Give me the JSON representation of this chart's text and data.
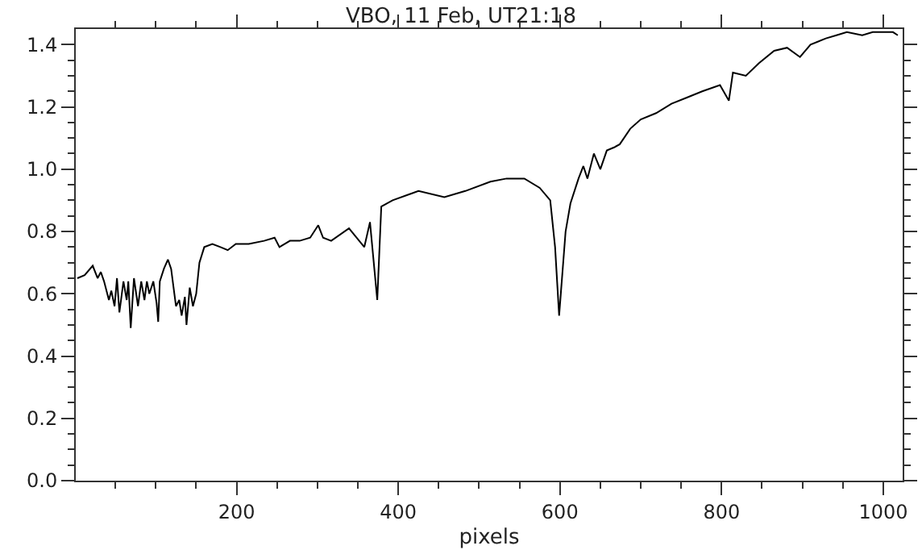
{
  "chart_data": {
    "type": "line",
    "title": "VBO, 11 Feb, UT21:18",
    "xlabel": "pixels",
    "xlim": [
      1,
      1024
    ],
    "ylim": [
      0,
      1.45
    ],
    "xticks": [
      {
        "value": 50,
        "label": null
      },
      {
        "value": 100,
        "label": null
      },
      {
        "value": 150,
        "label": null
      },
      200,
      {
        "value": 250,
        "label": null
      },
      {
        "value": 300,
        "label": null
      },
      {
        "value": 350,
        "label": null
      },
      400,
      {
        "value": 450,
        "label": null
      },
      {
        "value": 500,
        "label": null
      },
      {
        "value": 550,
        "label": null
      },
      600,
      {
        "value": 650,
        "label": null
      },
      {
        "value": 700,
        "label": null
      },
      {
        "value": 750,
        "label": null
      },
      800,
      {
        "value": 850,
        "label": null
      },
      {
        "value": 900,
        "label": null
      },
      {
        "value": 950,
        "label": null
      },
      1000
    ],
    "yticks": [
      {
        "value": 0,
        "label": "0.0"
      },
      {
        "value": 0.05,
        "label": null
      },
      {
        "value": 0.1,
        "label": null
      },
      {
        "value": 0.15,
        "label": null
      },
      {
        "value": 0.2,
        "label": "0.2"
      },
      {
        "value": 0.25,
        "label": null
      },
      {
        "value": 0.3,
        "label": null
      },
      {
        "value": 0.35,
        "label": null
      },
      {
        "value": 0.4,
        "label": "0.4"
      },
      {
        "value": 0.45,
        "label": null
      },
      {
        "value": 0.5,
        "label": null
      },
      {
        "value": 0.55,
        "label": null
      },
      {
        "value": 0.6,
        "label": "0.6"
      },
      {
        "value": 0.65,
        "label": null
      },
      {
        "value": 0.7,
        "label": null
      },
      {
        "value": 0.75,
        "label": null
      },
      {
        "value": 0.8,
        "label": "0.8"
      },
      {
        "value": 0.85,
        "label": null
      },
      {
        "value": 0.9,
        "label": null
      },
      {
        "value": 0.95,
        "label": null
      },
      {
        "value": 1.0,
        "label": "1.0"
      },
      {
        "value": 1.05,
        "label": null
      },
      {
        "value": 1.1,
        "label": null
      },
      {
        "value": 1.15,
        "label": null
      },
      {
        "value": 1.2,
        "label": "1.2"
      },
      {
        "value": 1.25,
        "label": null
      },
      {
        "value": 1.3,
        "label": null
      },
      {
        "value": 1.35,
        "label": null
      },
      {
        "value": 1.4,
        "label": "1.4"
      }
    ],
    "grid": false,
    "marker": "none",
    "line_style": "solid",
    "x": [
      3,
      12,
      22,
      28,
      32,
      36,
      42,
      45,
      49,
      52,
      55,
      60,
      64,
      66,
      69,
      73,
      78,
      82,
      86,
      89,
      92,
      97,
      101,
      103,
      105,
      110,
      115,
      119,
      123,
      125,
      129,
      132,
      136,
      138,
      142,
      146,
      150,
      154,
      160,
      170,
      180,
      189,
      199,
      215,
      234,
      247,
      253,
      266,
      278,
      291,
      301,
      307,
      317,
      339,
      358,
      365,
      374,
      379,
      393,
      425,
      457,
      483,
      514,
      534,
      556,
      575,
      588,
      594,
      599,
      607,
      613,
      623,
      629,
      634,
      642,
      650,
      658,
      667,
      674,
      687,
      700,
      719,
      738,
      757,
      776,
      798,
      809,
      814,
      830,
      846,
      865,
      881,
      897,
      910,
      929,
      942,
      955,
      974,
      987,
      999,
      1012,
      1018
    ],
    "series": [
      {
        "color": "#000000",
        "values": [
          0.65,
          0.66,
          0.69,
          0.65,
          0.67,
          0.64,
          0.58,
          0.61,
          0.56,
          0.65,
          0.54,
          0.64,
          0.58,
          0.64,
          0.49,
          0.65,
          0.56,
          0.64,
          0.58,
          0.64,
          0.6,
          0.64,
          0.57,
          0.51,
          0.64,
          0.68,
          0.71,
          0.68,
          0.6,
          0.56,
          0.58,
          0.53,
          0.59,
          0.5,
          0.62,
          0.56,
          0.6,
          0.7,
          0.75,
          0.76,
          0.75,
          0.74,
          0.76,
          0.76,
          0.77,
          0.78,
          0.75,
          0.77,
          0.77,
          0.78,
          0.82,
          0.78,
          0.77,
          0.81,
          0.75,
          0.83,
          0.58,
          0.88,
          0.9,
          0.93,
          0.91,
          0.93,
          0.96,
          0.97,
          0.97,
          0.94,
          0.9,
          0.75,
          0.53,
          0.8,
          0.89,
          0.97,
          1.01,
          0.97,
          1.05,
          1.0,
          1.06,
          1.07,
          1.08,
          1.13,
          1.16,
          1.18,
          1.21,
          1.23,
          1.25,
          1.27,
          1.22,
          1.31,
          1.3,
          1.34,
          1.38,
          1.39,
          1.36,
          1.4,
          1.42,
          1.43,
          1.44,
          1.43,
          1.44,
          1.44,
          1.44,
          1.43
        ]
      }
    ]
  }
}
